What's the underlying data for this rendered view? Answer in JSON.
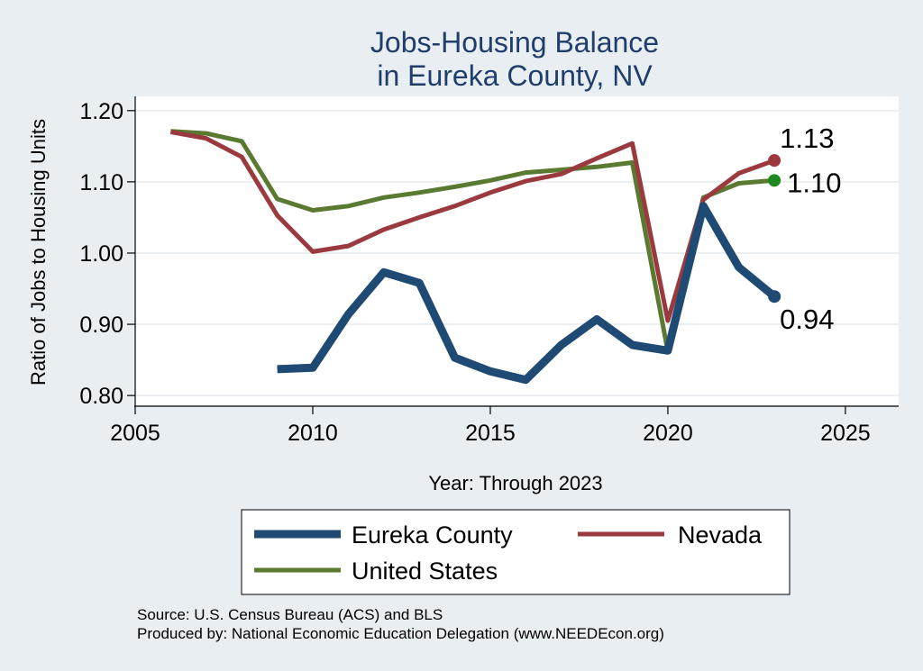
{
  "chart_data": {
    "type": "line",
    "title_lines": [
      "Jobs-Housing Balance",
      "in Eureka County, NV"
    ],
    "xlabel": "Year: Through 2023",
    "ylabel": "Ratio of Jobs to Housing Units",
    "xlim": [
      2005,
      2026.5
    ],
    "ylim": [
      0.785,
      1.22
    ],
    "xticks": [
      2005,
      2010,
      2015,
      2020,
      2025
    ],
    "yticks": [
      0.8,
      0.9,
      1.0,
      1.1,
      1.2
    ],
    "ytick_labels": [
      "0.80",
      "0.90",
      "1.00",
      "1.10",
      "1.20"
    ],
    "grid": true,
    "legend_placement": "bottom",
    "series": [
      {
        "name": "United States",
        "color": "#5a7a32",
        "x": [
          2006,
          2007,
          2008,
          2009,
          2010,
          2011,
          2012,
          2013,
          2014,
          2015,
          2016,
          2017,
          2018,
          2019,
          2020,
          2021,
          2022,
          2023
        ],
        "y": [
          1.171,
          1.168,
          1.157,
          1.076,
          1.06,
          1.066,
          1.078,
          1.085,
          1.093,
          1.102,
          1.113,
          1.117,
          1.121,
          1.127,
          0.862,
          1.078,
          1.098,
          1.102
        ],
        "end_label": "1.10",
        "end_marker_color": "#1e8a1e"
      },
      {
        "name": "Nevada",
        "color": "#9b3a3e",
        "x": [
          2006,
          2007,
          2008,
          2009,
          2010,
          2011,
          2012,
          2013,
          2014,
          2015,
          2016,
          2017,
          2018,
          2019,
          2020,
          2021,
          2022,
          2023
        ],
        "y": [
          1.17,
          1.161,
          1.135,
          1.053,
          1.002,
          1.01,
          1.033,
          1.05,
          1.066,
          1.085,
          1.101,
          1.111,
          1.133,
          1.154,
          0.905,
          1.075,
          1.112,
          1.13
        ],
        "end_label": "1.13",
        "end_marker_color": "#9b3a3e"
      },
      {
        "name": "Eureka County",
        "color": "#1e4a74",
        "x": [
          2009,
          2010,
          2011,
          2012,
          2013,
          2014,
          2015,
          2016,
          2017,
          2018,
          2019,
          2020,
          2021,
          2022,
          2023
        ],
        "y": [
          0.837,
          0.839,
          0.914,
          0.973,
          0.958,
          0.853,
          0.834,
          0.822,
          0.871,
          0.907,
          0.871,
          0.863,
          1.066,
          0.98,
          0.939
        ],
        "end_label": "0.94",
        "end_marker_color": "#1e4a74"
      }
    ],
    "legend_entries": [
      "Eureka County",
      "Nevada",
      "United States"
    ]
  },
  "source_lines": [
    "Source: U.S. Census Bureau (ACS) and BLS",
    "Produced by: National Economic Education Delegation (www.NEEDEcon.org)"
  ]
}
